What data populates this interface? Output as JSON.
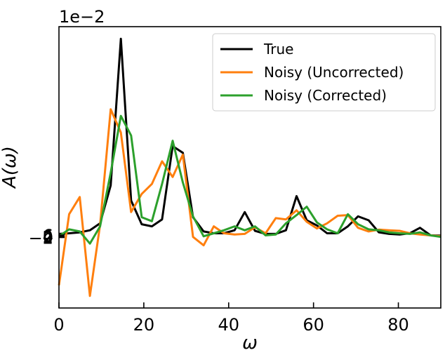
{
  "chart_data": {
    "type": "line",
    "xlabel": "ω",
    "ylabel": "A(ω)",
    "scale_label": "1e−2",
    "xlim": [
      0,
      90
    ],
    "ylim": [
      -2.35,
      6.95
    ],
    "y_display_factor": 100,
    "x_ticks": [
      0,
      20,
      40,
      60,
      80
    ],
    "x_tick_labels": [
      "0",
      "20",
      "40",
      "60",
      "80"
    ],
    "y_ticks": [
      -2,
      0,
      2,
      4,
      6
    ],
    "y_tick_labels": [
      "−2",
      "0",
      "2",
      "4",
      "6"
    ],
    "grid": false,
    "legend_position": "top-right",
    "series": [
      {
        "name": "True",
        "color": "#000000",
        "x": [
          0,
          2.4,
          4.9,
          7.3,
          9.7,
          12.2,
          14.6,
          17.0,
          19.5,
          21.9,
          24.3,
          26.8,
          29.2,
          31.6,
          34.1,
          36.5,
          38.9,
          41.4,
          43.8,
          46.2,
          48.7,
          51.1,
          53.5,
          56.0,
          58.4,
          60.8,
          63.2,
          65.7,
          68.1,
          70.5,
          73.0,
          75.4,
          77.8,
          80.3,
          82.7,
          85.1,
          87.6,
          90.0
        ],
        "y": [
          0.1,
          0.12,
          0.15,
          0.22,
          0.45,
          1.7,
          6.55,
          1.2,
          0.42,
          0.35,
          0.58,
          3.0,
          2.78,
          0.65,
          0.18,
          0.12,
          0.12,
          0.22,
          0.82,
          0.2,
          0.1,
          0.1,
          0.22,
          1.35,
          0.55,
          0.38,
          0.12,
          0.12,
          0.35,
          0.68,
          0.55,
          0.15,
          0.1,
          0.08,
          0.12,
          0.3,
          0.05,
          0.04
        ]
      },
      {
        "name": "Noisy (Uncorrected)",
        "color": "#ff7f0e",
        "x": [
          0,
          2.4,
          4.9,
          7.3,
          9.7,
          12.2,
          14.6,
          17.0,
          19.5,
          21.9,
          24.3,
          26.8,
          29.2,
          31.6,
          34.1,
          36.5,
          38.9,
          41.4,
          43.8,
          46.2,
          48.7,
          51.1,
          53.5,
          56.0,
          58.4,
          60.8,
          63.2,
          65.7,
          68.1,
          70.5,
          73.0,
          75.4,
          77.8,
          80.3,
          82.7,
          85.1,
          87.6,
          90.0
        ],
        "y": [
          -1.6,
          0.75,
          1.32,
          -1.95,
          0.4,
          4.22,
          3.45,
          0.82,
          1.42,
          1.75,
          2.5,
          1.98,
          2.72,
          0.0,
          -0.28,
          0.35,
          0.12,
          0.08,
          0.1,
          0.32,
          0.12,
          0.62,
          0.58,
          0.88,
          0.5,
          0.28,
          0.45,
          0.7,
          0.72,
          0.3,
          0.18,
          0.24,
          0.22,
          0.2,
          0.12,
          0.08,
          0.05,
          0.02
        ]
      },
      {
        "name": "Noisy (Corrected)",
        "color": "#2ca02c",
        "x": [
          0,
          2.4,
          4.9,
          7.3,
          9.7,
          12.2,
          14.6,
          17.0,
          19.5,
          21.9,
          24.3,
          26.8,
          29.2,
          31.6,
          34.1,
          36.5,
          38.9,
          41.4,
          43.8,
          46.2,
          48.7,
          51.1,
          53.5,
          56.0,
          58.4,
          60.8,
          63.2,
          65.7,
          68.1,
          70.5,
          73.0,
          75.4,
          77.8,
          80.3,
          82.7,
          85.1,
          87.6,
          90.0
        ],
        "y": [
          0.02,
          0.25,
          0.18,
          -0.22,
          0.35,
          2.12,
          4.0,
          3.35,
          0.65,
          0.52,
          1.75,
          3.18,
          1.8,
          0.68,
          0.02,
          0.12,
          0.22,
          0.35,
          0.22,
          0.35,
          0.05,
          0.08,
          0.45,
          0.72,
          1.0,
          0.48,
          0.25,
          0.12,
          0.75,
          0.42,
          0.25,
          0.22,
          0.15,
          0.12,
          0.1,
          0.15,
          0.05,
          0.0
        ]
      }
    ]
  }
}
